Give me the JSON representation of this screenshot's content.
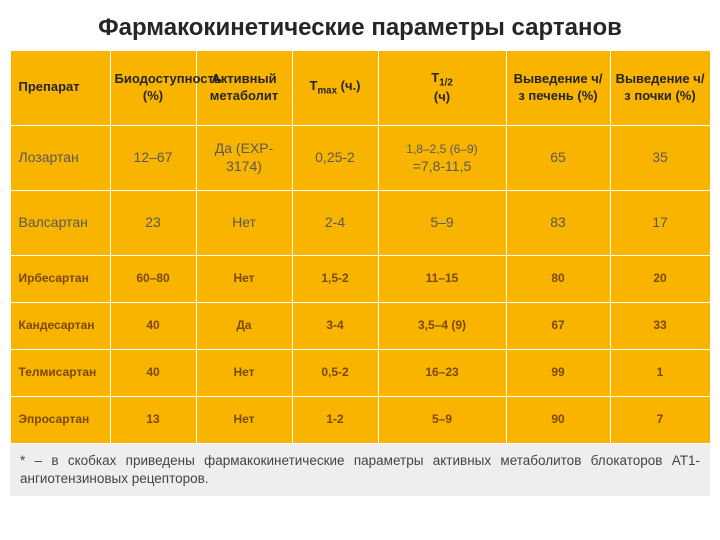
{
  "title": "Фармакокинетические параметры сартанов",
  "columns": {
    "c0": "Препарат",
    "c1": "Биодоступность (%)",
    "c2": "Активный метаболит",
    "c3_pre": "Т",
    "c3_sub": "max",
    "c3_post": " (ч.)",
    "c4_pre": "Т",
    "c4_sub": "1/2",
    "c4_post": " (ч)",
    "c5": "Выведение ч/з печень (%)",
    "c6": "Выведение ч/з почки (%)"
  },
  "rows": [
    {
      "style": "big",
      "c0": "Лозартан",
      "c1": "12–67",
      "c2": "Да (EXP-3174)",
      "c3": "0,25-2",
      "c4a": "1,8–2,5 (6–9)",
      "c4b": "=7,8-11,5",
      "c5": "65",
      "c6": "35"
    },
    {
      "style": "big",
      "c0": "Валсартан",
      "c1": "23",
      "c2": "Нет",
      "c3": "2-4",
      "c4a": "5–9",
      "c4b": "",
      "c5": "83",
      "c6": "17"
    },
    {
      "style": "small",
      "c0": "Ирбесартан",
      "c1": "60–80",
      "c2": "Нет",
      "c3": "1,5-2",
      "c4a": "11–15",
      "c4b": "",
      "c5": "80",
      "c6": "20"
    },
    {
      "style": "small",
      "c0": "Кандесартан",
      "c1": "40",
      "c2": "Да",
      "c3": "3-4",
      "c4a": "3,5–4 (9)",
      "c4b": "",
      "c5": "67",
      "c6": "33"
    },
    {
      "style": "small",
      "c0": "Телмисартан",
      "c1": "40",
      "c2": "Нет",
      "c3": "0,5-2",
      "c4a": "16–23",
      "c4b": "",
      "c5": "99",
      "c6": "1"
    },
    {
      "style": "small",
      "c0": "Эпросартан",
      "c1": "13",
      "c2": "Нет",
      "c3": "1-2",
      "c4a": "5–9",
      "c4b": "",
      "c5": "90",
      "c6": "7"
    }
  ],
  "footnote": "* – в скобках приведены фармакокинетические параметры активных метаболитов блокаторов АТ1-ангиотензиновых рецепторов.",
  "col_widths": [
    "100",
    "86",
    "96",
    "86",
    "128",
    "104",
    "100"
  ],
  "colors": {
    "header_bg": "#f9b400",
    "big_row_text": "#595959",
    "small_row_text": "#7a4a00",
    "border": "#ffffff",
    "footnote_bg": "#eeeeee",
    "title_color": "#262626"
  }
}
